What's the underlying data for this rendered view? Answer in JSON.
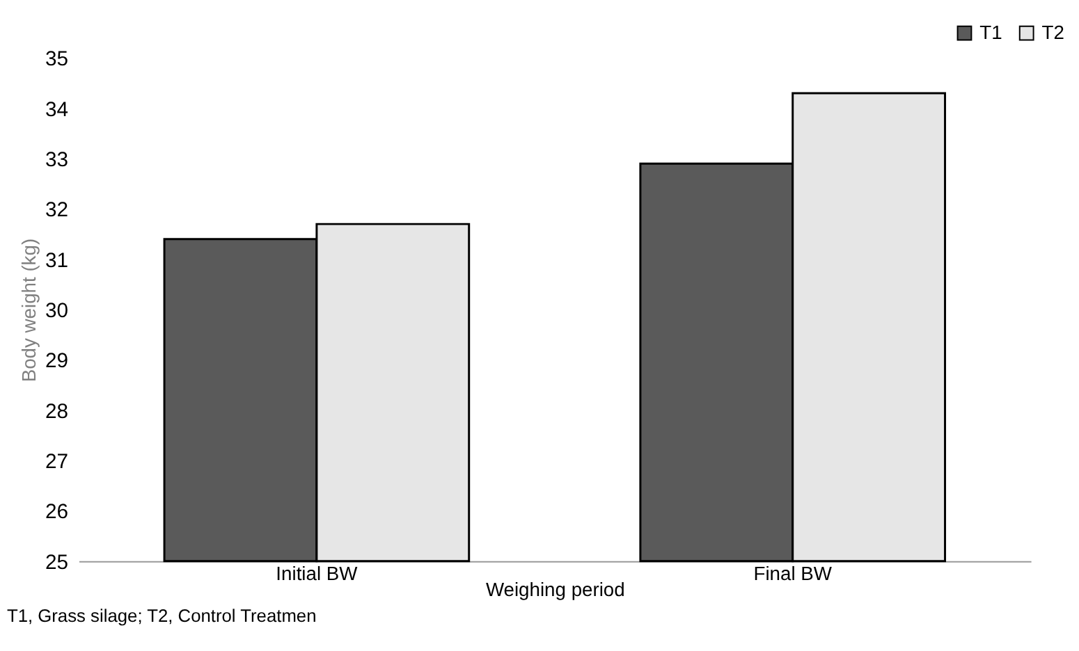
{
  "chart_data": {
    "type": "bar",
    "xlabel": "Weighing period",
    "ylabel": "Body weight (kg)",
    "categories": [
      "Initial BW",
      "Final BW"
    ],
    "series": [
      {
        "name": "T1",
        "color": "#5a5a5a",
        "values": [
          31.4,
          32.9
        ]
      },
      {
        "name": "T2",
        "color": "#e6e6e6",
        "values": [
          31.7,
          34.3
        ]
      }
    ],
    "ylim": [
      25,
      35
    ],
    "yticks": [
      25,
      26,
      27,
      28,
      29,
      30,
      31,
      32,
      33,
      34,
      35
    ],
    "grid": false,
    "legend": "top right",
    "annotations": [
      "T1, Grass silage; T2, Control Treatmen"
    ]
  }
}
